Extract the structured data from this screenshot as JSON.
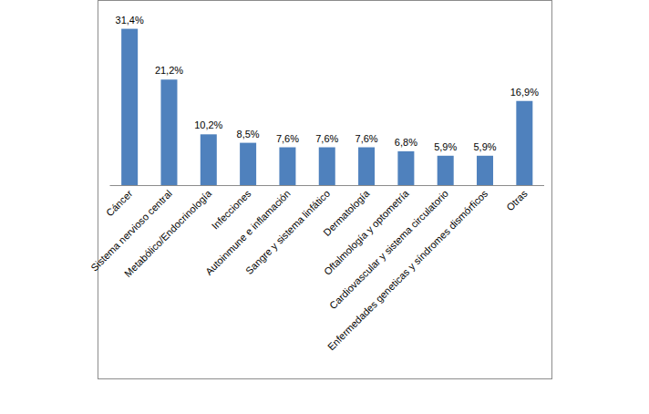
{
  "chart_data": {
    "type": "bar",
    "categories": [
      "Cáncer",
      "Sistema nervioso central",
      "Metabólico/Endocrinología",
      "Infecciones",
      "Autoinmune e inflamación",
      "Sangre y sistema  linfático",
      "Dermatología",
      "Oftalmología y optometría",
      "Cardiovascular y sistema circulatorio",
      "Enfermedades geneticas y síndromes dismórficos",
      "Otras"
    ],
    "values": [
      31.4,
      21.2,
      10.2,
      8.5,
      7.6,
      7.6,
      7.6,
      6.8,
      5.9,
      5.9,
      16.9
    ],
    "value_labels": [
      "31,4%",
      "21,2%",
      "10,2%",
      "8,5%",
      "7,6%",
      "7,6%",
      "7,6%",
      "6,8%",
      "5,9%",
      "5,9%",
      "16,9%"
    ],
    "data_labels": true,
    "color": "#4f81bd",
    "ylim": [
      0,
      37
    ],
    "tick_labels": "x",
    "grid": false
  }
}
